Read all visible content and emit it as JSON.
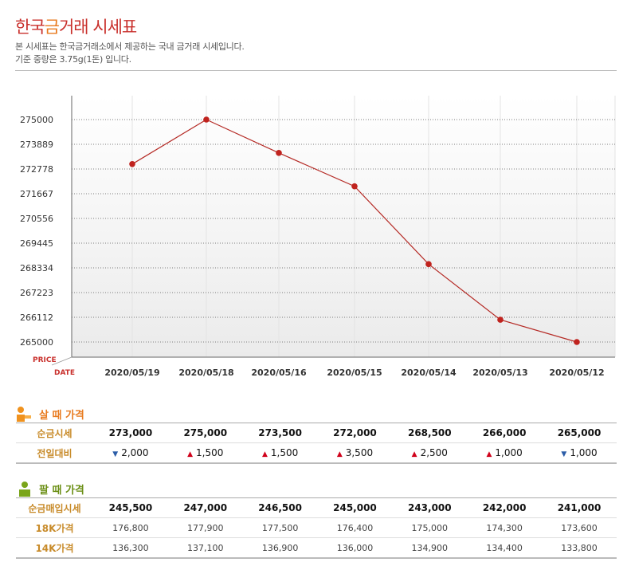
{
  "header": {
    "title_a": "한국",
    "title_b": "금",
    "title_c": "거래 시세표",
    "desc1": "본 시세표는 한국금거래소에서 제공하는 국내 금거래 시세입니다.",
    "desc2": "기준 중량은 3.75g(1돈) 입니다."
  },
  "chart_data": {
    "type": "line",
    "title": "",
    "xlabel": "DATE",
    "ylabel": "PRICE",
    "categories": [
      "2020/05/19",
      "2020/05/18",
      "2020/05/16",
      "2020/05/15",
      "2020/05/14",
      "2020/05/13",
      "2020/05/12"
    ],
    "series": [
      {
        "name": "순금시세",
        "values": [
          273000,
          275000,
          273500,
          272000,
          268500,
          266000,
          265000
        ]
      }
    ],
    "yticks": [
      275000,
      273889,
      272778,
      271667,
      270556,
      269445,
      268334,
      267223,
      266112,
      265000
    ],
    "ylim": [
      264000,
      276000
    ],
    "line_color": "#b52a25"
  },
  "buy": {
    "title": "살 때 가격",
    "rows": [
      {
        "label": "순금시세",
        "values": [
          "273,000",
          "275,000",
          "273,500",
          "272,000",
          "268,500",
          "266,000",
          "265,000"
        ]
      },
      {
        "label": "전일대비",
        "values": [
          "2,000",
          "1,500",
          "1,500",
          "3,500",
          "2,500",
          "1,000",
          "1,000"
        ],
        "dirs": [
          "▼",
          "▲",
          "▲",
          "▲",
          "▲",
          "▲",
          "▼"
        ]
      }
    ]
  },
  "sell": {
    "title": "팔 때 가격",
    "rows": [
      {
        "label": "순금매입시세",
        "values": [
          "245,500",
          "247,000",
          "246,500",
          "245,000",
          "243,000",
          "242,000",
          "241,000"
        ]
      },
      {
        "label": "18K가격",
        "values": [
          "176,800",
          "177,900",
          "177,500",
          "176,400",
          "175,000",
          "174,300",
          "173,600"
        ]
      },
      {
        "label": "14K가격",
        "values": [
          "136,300",
          "137,100",
          "136,900",
          "136,000",
          "134,900",
          "134,400",
          "133,800"
        ]
      }
    ]
  }
}
